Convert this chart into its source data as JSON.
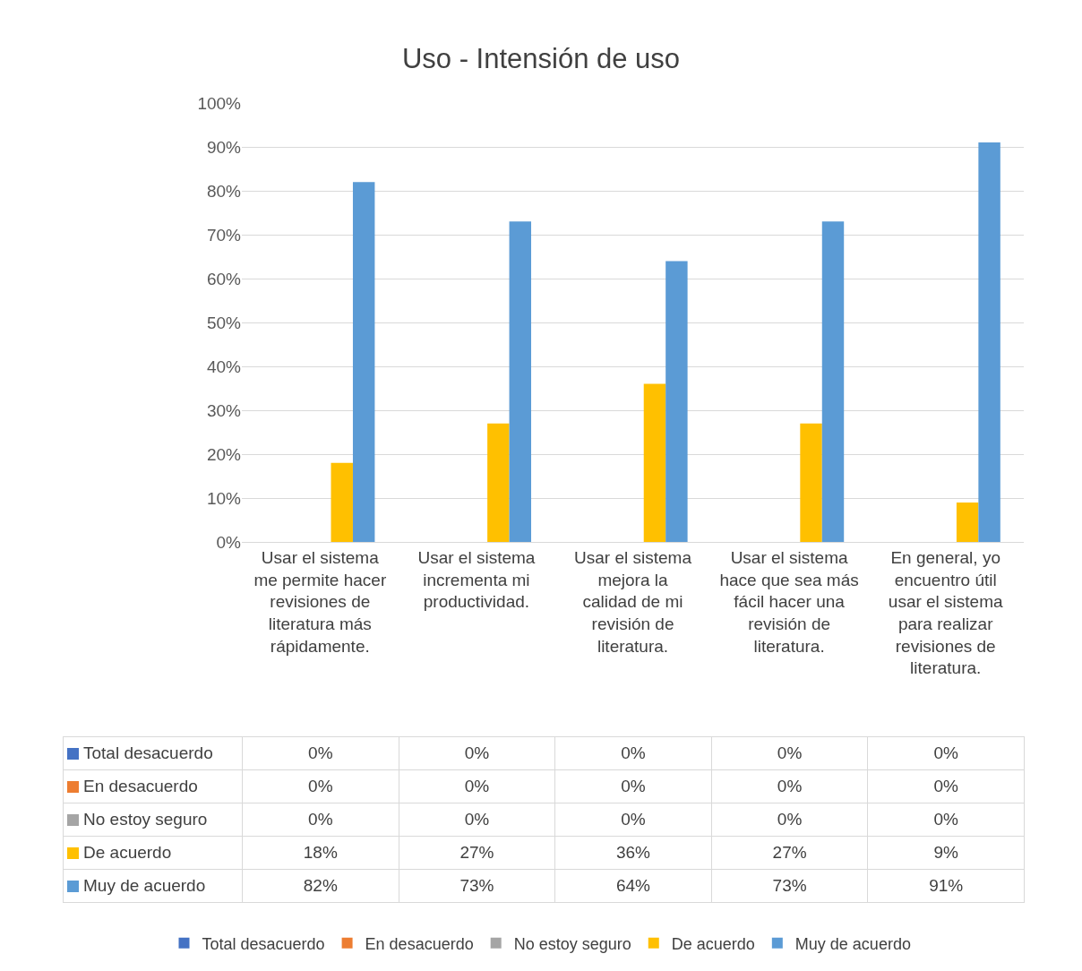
{
  "chart_data": {
    "type": "bar",
    "title": "Uso - Intensión de uso",
    "categories": [
      "Usar el sistema me permite hacer revisiones de literatura más rápidamente.",
      "Usar el sistema incrementa mi productividad.",
      "Usar el sistema mejora la calidad de mi revisión de literatura.",
      "Usar el sistema hace que sea más fácil hacer una revisión de literatura.",
      "En general, yo encuentro útil usar el sistema para realizar revisiones de literatura."
    ],
    "series": [
      {
        "name": "Total desacuerdo",
        "color": "#4472c4",
        "values": [
          0,
          0,
          0,
          0,
          0
        ],
        "value_labels": [
          "0%",
          "0%",
          "0%",
          "0%",
          "0%"
        ]
      },
      {
        "name": "En desacuerdo",
        "color": "#ed7d31",
        "values": [
          0,
          0,
          0,
          0,
          0
        ],
        "value_labels": [
          "0%",
          "0%",
          "0%",
          "0%",
          "0%"
        ]
      },
      {
        "name": "No estoy seguro",
        "color": "#a5a5a5",
        "values": [
          0,
          0,
          0,
          0,
          0
        ],
        "value_labels": [
          "0%",
          "0%",
          "0%",
          "0%",
          "0%"
        ]
      },
      {
        "name": "De acuerdo",
        "color": "#ffc000",
        "values": [
          18,
          27,
          36,
          27,
          9
        ],
        "value_labels": [
          "18%",
          "27%",
          "36%",
          "27%",
          "9%"
        ]
      },
      {
        "name": "Muy de acuerdo",
        "color": "#5b9bd5",
        "values": [
          82,
          73,
          64,
          73,
          91
        ],
        "value_labels": [
          "82%",
          "73%",
          "64%",
          "73%",
          "91%"
        ]
      }
    ],
    "ylim": [
      0,
      100
    ],
    "yticks": [
      {
        "value": 0,
        "label": "0%"
      },
      {
        "value": 10,
        "label": "10%"
      },
      {
        "value": 20,
        "label": "20%"
      },
      {
        "value": 30,
        "label": "30%"
      },
      {
        "value": 40,
        "label": "40%"
      },
      {
        "value": 50,
        "label": "50%"
      },
      {
        "value": 60,
        "label": "60%"
      },
      {
        "value": 70,
        "label": "70%"
      },
      {
        "value": 80,
        "label": "80%"
      },
      {
        "value": 90,
        "label": "90%"
      },
      {
        "value": 100,
        "label": "100%"
      }
    ],
    "grid": true,
    "legend": "bottom"
  }
}
